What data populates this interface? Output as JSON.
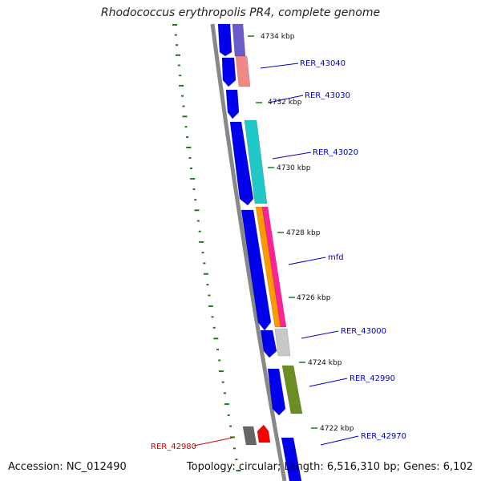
{
  "title": "Rhodococcus erythropolis PR4, complete genome",
  "footer": {
    "accession": "Accession: NC_012490",
    "summary": "Topology: circular; Length: 6,516,310 bp; Genes: 6,102"
  },
  "backbone_color": "#888888",
  "tick_color": "#1e7a1e",
  "scale_labels": [
    "4734 kbp",
    "4732 kbp",
    "4730 kbp",
    "4728 kbp",
    "4726 kbp",
    "4724 kbp",
    "4722 kbp"
  ],
  "gene_labels": [
    {
      "text": "RER_43040",
      "color": "#0000cc"
    },
    {
      "text": "RER_43030",
      "color": "#0000cc"
    },
    {
      "text": "RER_43020",
      "color": "#0000cc"
    },
    {
      "text": "mfd",
      "color": "#0000cc"
    },
    {
      "text": "RER_43000",
      "color": "#0000cc"
    },
    {
      "text": "RER_42990",
      "color": "#0000cc"
    },
    {
      "text": "RER_42970",
      "color": "#0000cc"
    },
    {
      "text": "RER_42980",
      "color": "#cc0000"
    }
  ],
  "feature_colors": {
    "cds": "#0000ee",
    "rer_43040": "#f08888",
    "rer_43020": "#20c8c8",
    "mfd_a": "#ff9900",
    "mfd_b": "#ff2299",
    "rer_43000": "#c8c8c8",
    "rer_42990": "#6b8e23",
    "rer_42980_gray": "#666666",
    "rer_42980_red": "#ff0000",
    "top_purple": "#6a5acd"
  }
}
